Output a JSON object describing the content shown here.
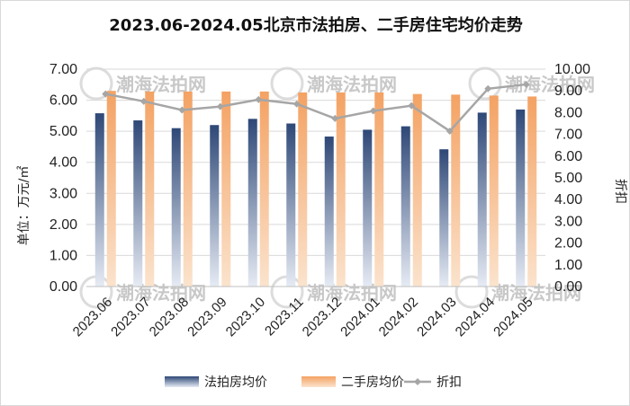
{
  "watermark": "潮海法拍网",
  "colors": {
    "series1_top": "#2e4877",
    "series1_bottom": "#e6ebf4",
    "series2_top": "#f4a263",
    "series2_bottom": "#fbe3cd",
    "line": "#a6a6a6",
    "grid": "#d9d9d9"
  },
  "chart_data": {
    "type": "bar",
    "title": "2023.06-2024.05北京市法拍房、二手房住宅均价走势",
    "categories": [
      "2023.06",
      "2023.07",
      "2023.08",
      "2023.09",
      "2023.10",
      "2023.11",
      "2023.12",
      "2024.01",
      "2024.02",
      "2024.03",
      "2024.04",
      "2024.05"
    ],
    "ylabel": "单位：万元/㎡",
    "y2label": "折扣",
    "ylim": [
      0,
      7
    ],
    "y2lim": [
      0,
      10
    ],
    "yticks": [
      "0.00",
      "1.00",
      "2.00",
      "3.00",
      "4.00",
      "5.00",
      "6.00",
      "7.00"
    ],
    "y2ticks": [
      "0.00",
      "1.00",
      "2.00",
      "3.00",
      "4.00",
      "5.00",
      "6.00",
      "7.00",
      "8.00",
      "9.00",
      "10.00"
    ],
    "grid": true,
    "legend_position": "bottom",
    "series": [
      {
        "name": "法拍房均价",
        "type": "bar",
        "axis": "left",
        "values": [
          5.58,
          5.35,
          5.1,
          5.2,
          5.4,
          5.25,
          4.83,
          5.05,
          5.16,
          4.42,
          5.6,
          5.7
        ]
      },
      {
        "name": "二手房均价",
        "type": "bar",
        "axis": "left",
        "values": [
          6.3,
          6.28,
          6.28,
          6.28,
          6.28,
          6.25,
          6.25,
          6.25,
          6.2,
          6.18,
          6.15,
          6.12
        ]
      },
      {
        "name": "折扣",
        "type": "line",
        "axis": "right",
        "values": [
          8.86,
          8.52,
          8.12,
          8.28,
          8.6,
          8.4,
          7.73,
          8.08,
          8.32,
          7.15,
          9.1,
          9.3
        ]
      }
    ]
  }
}
